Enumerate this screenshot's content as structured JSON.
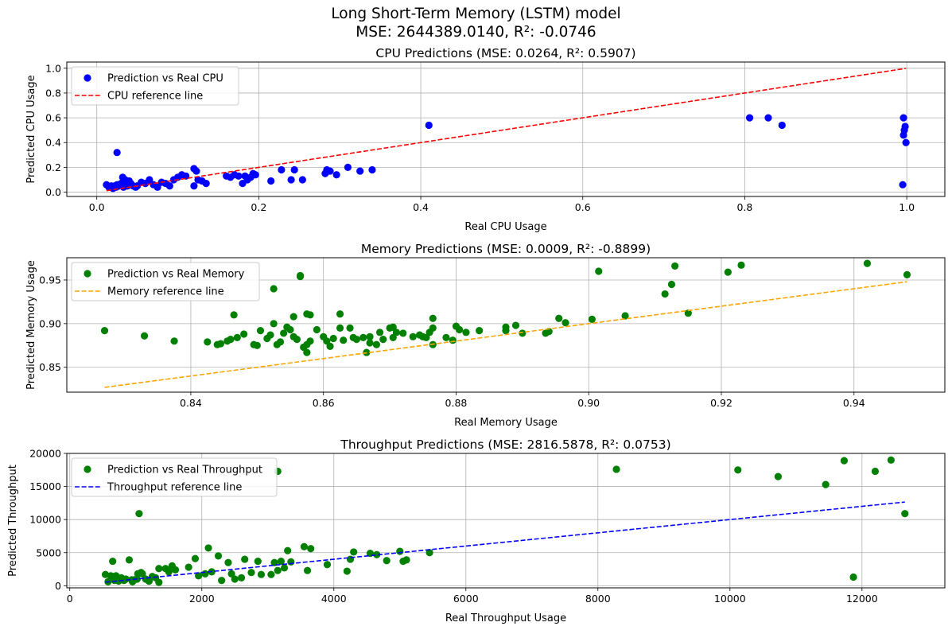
{
  "figure": {
    "title_line1": "Long Short-Term Memory (LSTM) model",
    "title_line2": "MSE: 2644389.0140, R²: -0.0746"
  },
  "chart_data": [
    {
      "type": "scatter",
      "title": "CPU Predictions (MSE: 0.0264, R²: 0.5907)",
      "xlabel": "Real CPU Usage",
      "ylabel": "Predicted CPU Usage",
      "xlim": [
        -0.037,
        1.047
      ],
      "ylim": [
        -0.035,
        1.05
      ],
      "xticks": [
        0.0,
        0.2,
        0.4,
        0.6,
        0.8,
        1.0
      ],
      "xtick_labels": [
        "0.0",
        "0.2",
        "0.4",
        "0.6",
        "0.8",
        "1.0"
      ],
      "yticks": [
        0.0,
        0.2,
        0.4,
        0.6,
        0.8,
        1.0
      ],
      "ytick_labels": [
        "0.0",
        "0.2",
        "0.4",
        "0.6",
        "0.8",
        "1.0"
      ],
      "grid": true,
      "legend_position": "upper-left",
      "series": [
        {
          "name": "Prediction vs Real CPU",
          "kind": "scatter",
          "color": "#0000ff",
          "x": [
            0.012,
            0.015,
            0.018,
            0.02,
            0.022,
            0.024,
            0.025,
            0.027,
            0.03,
            0.032,
            0.033,
            0.035,
            0.036,
            0.038,
            0.04,
            0.042,
            0.045,
            0.048,
            0.05,
            0.055,
            0.06,
            0.065,
            0.07,
            0.075,
            0.08,
            0.085,
            0.09,
            0.095,
            0.1,
            0.105,
            0.11,
            0.12,
            0.12,
            0.123,
            0.125,
            0.13,
            0.135,
            0.025,
            0.16,
            0.165,
            0.17,
            0.175,
            0.18,
            0.183,
            0.186,
            0.19,
            0.193,
            0.196,
            0.215,
            0.228,
            0.24,
            0.244,
            0.254,
            0.282,
            0.284,
            0.288,
            0.296,
            0.31,
            0.325,
            0.34,
            0.41,
            0.806,
            0.829,
            0.846,
            0.995,
            0.996,
            0.997,
            0.998,
            0.999,
            0.996
          ],
          "y": [
            0.06,
            0.04,
            0.05,
            0.03,
            0.05,
            0.04,
            0.06,
            0.05,
            0.07,
            0.12,
            0.04,
            0.1,
            0.06,
            0.05,
            0.09,
            0.07,
            0.05,
            0.04,
            0.05,
            0.08,
            0.07,
            0.1,
            0.06,
            0.04,
            0.08,
            0.07,
            0.05,
            0.1,
            0.12,
            0.14,
            0.13,
            0.19,
            0.05,
            0.17,
            0.1,
            0.09,
            0.07,
            0.32,
            0.13,
            0.12,
            0.14,
            0.13,
            0.07,
            0.13,
            0.1,
            0.12,
            0.15,
            0.14,
            0.09,
            0.18,
            0.1,
            0.18,
            0.1,
            0.15,
            0.18,
            0.17,
            0.14,
            0.2,
            0.17,
            0.18,
            0.54,
            0.6,
            0.6,
            0.54,
            0.06,
            0.46,
            0.5,
            0.53,
            0.4,
            0.6
          ]
        },
        {
          "name": "CPU reference line",
          "kind": "line",
          "style": "dashed",
          "color": "#ff0000",
          "x": [
            0.012,
            0.999
          ],
          "y": [
            0.012,
            0.999
          ]
        }
      ]
    },
    {
      "type": "scatter",
      "title": "Memory Predictions (MSE: 0.0009, R²: -0.8899)",
      "xlabel": "Real Memory Usage",
      "ylabel": "Predicted Memory Usage",
      "xlim": [
        0.8213,
        0.9537
      ],
      "ylim": [
        0.8215,
        0.9755
      ],
      "xticks": [
        0.84,
        0.86,
        0.88,
        0.9,
        0.92,
        0.94
      ],
      "xtick_labels": [
        "0.84",
        "0.86",
        "0.88",
        "0.90",
        "0.92",
        "0.94"
      ],
      "yticks": [
        0.85,
        0.9,
        0.95
      ],
      "ytick_labels": [
        "0.85",
        "0.90",
        "0.95"
      ],
      "grid": true,
      "legend_position": "upper-left",
      "series": [
        {
          "name": "Prediction vs Real Memory",
          "kind": "scatter",
          "color": "#008000",
          "x": [
            0.827,
            0.833,
            0.8375,
            0.8425,
            0.844,
            0.8445,
            0.8455,
            0.846,
            0.8465,
            0.847,
            0.848,
            0.8495,
            0.85,
            0.8505,
            0.8515,
            0.852,
            0.8525,
            0.853,
            0.8535,
            0.854,
            0.8545,
            0.855,
            0.8555,
            0.856,
            0.8565,
            0.857,
            0.8575,
            0.8575,
            0.858,
            0.858,
            0.859,
            0.86,
            0.8605,
            0.861,
            0.8615,
            0.8625,
            0.863,
            0.864,
            0.8645,
            0.865,
            0.866,
            0.867,
            0.867,
            0.868,
            0.8685,
            0.869,
            0.87,
            0.8705,
            0.871,
            0.872,
            0.8735,
            0.8745,
            0.875,
            0.8755,
            0.876,
            0.8765,
            0.8765,
            0.8785,
            0.8795,
            0.88,
            0.8805,
            0.8815,
            0.8835,
            0.8875,
            0.8875,
            0.889,
            0.89,
            0.8935,
            0.894,
            0.8955,
            0.8965,
            0.9005,
            0.9015,
            0.9055,
            0.9115,
            0.9125,
            0.913,
            0.915,
            0.921,
            0.923,
            0.942,
            0.948,
            0.8525,
            0.8565,
            0.8575,
            0.8665,
            0.8705,
            0.8555,
            0.8625,
            0.8765
          ],
          "y": [
            0.892,
            0.886,
            0.88,
            0.879,
            0.876,
            0.877,
            0.88,
            0.882,
            0.91,
            0.884,
            0.888,
            0.876,
            0.875,
            0.892,
            0.883,
            0.887,
            0.9,
            0.876,
            0.879,
            0.889,
            0.896,
            0.893,
            0.885,
            0.882,
            0.954,
            0.873,
            0.876,
            0.867,
            0.91,
            0.88,
            0.893,
            0.885,
            0.88,
            0.874,
            0.883,
            0.895,
            0.881,
            0.895,
            0.884,
            0.882,
            0.884,
            0.878,
            0.885,
            0.876,
            0.89,
            0.882,
            0.895,
            0.884,
            0.89,
            0.889,
            0.885,
            0.887,
            0.885,
            0.884,
            0.89,
            0.895,
            0.906,
            0.884,
            0.881,
            0.897,
            0.893,
            0.89,
            0.892,
            0.892,
            0.896,
            0.898,
            0.889,
            0.889,
            0.891,
            0.906,
            0.901,
            0.905,
            0.96,
            0.909,
            0.934,
            0.945,
            0.966,
            0.912,
            0.959,
            0.967,
            0.969,
            0.956,
            0.94,
            0.955,
            0.911,
            0.867,
            0.896,
            0.908,
            0.911,
            0.876
          ]
        },
        {
          "name": "Memory reference line",
          "kind": "line",
          "style": "dashed",
          "color": "#ffa500",
          "x": [
            0.827,
            0.948
          ],
          "y": [
            0.827,
            0.948
          ]
        }
      ]
    },
    {
      "type": "scatter",
      "title": "Throughput Predictions (MSE: 2816.5878, R²: 0.0753)",
      "xlabel": "Real Throughput Usage",
      "ylabel": "Predicted Throughput",
      "xlim": [
        -45,
        13255
      ],
      "ylim": [
        -320,
        20000
      ],
      "xticks": [
        0,
        2000,
        4000,
        6000,
        8000,
        10000,
        12000
      ],
      "xtick_labels": [
        "0",
        "2000",
        "4000",
        "6000",
        "8000",
        "10000",
        "12000"
      ],
      "yticks": [
        0,
        5000,
        10000,
        15000,
        20000
      ],
      "ytick_labels": [
        "0",
        "5000",
        "10000",
        "15000",
        "20000"
      ],
      "grid": true,
      "legend_position": "upper-left",
      "series": [
        {
          "name": "Prediction vs Real Throughput",
          "kind": "scatter",
          "color": "#008000",
          "x": [
            540,
            580,
            620,
            650,
            680,
            700,
            740,
            780,
            820,
            850,
            900,
            950,
            980,
            1020,
            1050,
            1080,
            1100,
            1150,
            1200,
            1250,
            1300,
            1350,
            1450,
            1500,
            1550,
            1600,
            1800,
            1900,
            1950,
            2050,
            2100,
            2150,
            2250,
            2300,
            2400,
            2450,
            2500,
            2600,
            2650,
            2750,
            2850,
            2900,
            3050,
            3100,
            3150,
            3200,
            3250,
            3300,
            3350,
            3550,
            3600,
            3650,
            3900,
            4200,
            4250,
            4300,
            4550,
            4650,
            4800,
            5000,
            5050,
            5100,
            5450,
            3150,
            8280,
            10120,
            10730,
            11450,
            11730,
            11870,
            12200,
            12440,
            12650,
            1030,
            650,
            940,
            1200,
            1350
          ],
          "y": [
            1700,
            600,
            1500,
            3700,
            800,
            1500,
            700,
            1200,
            800,
            1000,
            3900,
            600,
            900,
            1000,
            10900,
            2000,
            1800,
            1000,
            700,
            1400,
            1200,
            2600,
            2600,
            2100,
            3000,
            2400,
            2800,
            4100,
            1500,
            1800,
            5700,
            2100,
            4500,
            800,
            3500,
            1800,
            1000,
            1200,
            4000,
            2000,
            3700,
            1700,
            1700,
            3500,
            17300,
            3700,
            2700,
            5300,
            3600,
            5900,
            2300,
            5600,
            3200,
            2200,
            4000,
            5100,
            4900,
            4700,
            3800,
            5200,
            3700,
            3900,
            5000,
            2300,
            17600,
            17500,
            16500,
            15300,
            18900,
            1300,
            17300,
            19000,
            10900,
            1800,
            1400,
            900,
            700,
            500
          ]
        },
        {
          "name": "Throughput reference line",
          "kind": "line",
          "style": "dashed",
          "color": "#0000ff",
          "x": [
            540,
            12650
          ],
          "y": [
            540,
            12650
          ]
        }
      ]
    }
  ]
}
